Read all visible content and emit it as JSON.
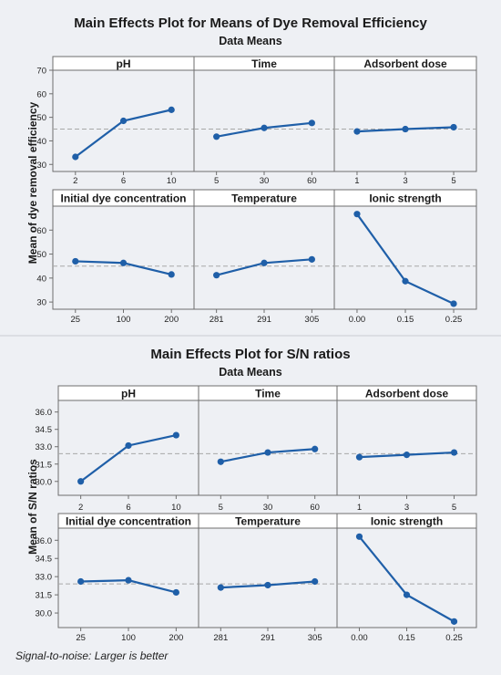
{
  "colors": {
    "background": "#eef0f4",
    "panel_header": "#ffffff",
    "line": "#1f5fa8",
    "reference_line": "#a8a8a8",
    "frame": "#6e6e6e"
  },
  "footnote": "Signal-to-noise: Larger is better",
  "chart_data": [
    {
      "type": "line",
      "title": "Main Effects Plot for Means of Dye Removal Efficiency",
      "subtitle": "Data Means",
      "ylabel": "Mean of dye removal efficiency",
      "grid": false,
      "reference_line": 45,
      "rows": [
        {
          "ylim": [
            27,
            70
          ],
          "yticks": [
            "30",
            "40",
            "50",
            "60",
            "70"
          ]
        },
        {
          "ylim": [
            27,
            70
          ],
          "yticks": [
            "30",
            "40",
            "50",
            "60"
          ]
        }
      ],
      "panels": [
        {
          "title": "pH",
          "categories": [
            "2",
            "6",
            "10"
          ],
          "values": [
            33.2,
            48.5,
            53.2
          ]
        },
        {
          "title": "Time",
          "categories": [
            "5",
            "30",
            "60"
          ],
          "values": [
            41.8,
            45.5,
            47.6
          ]
        },
        {
          "title": "Adsorbent dose",
          "categories": [
            "1",
            "3",
            "5"
          ],
          "values": [
            44.0,
            45.0,
            45.8
          ]
        },
        {
          "title": "Initial dye concentration",
          "categories": [
            "25",
            "100",
            "200"
          ],
          "values": [
            47.0,
            46.3,
            41.5
          ]
        },
        {
          "title": "Temperature",
          "categories": [
            "281",
            "291",
            "305"
          ],
          "values": [
            41.2,
            46.3,
            47.8
          ]
        },
        {
          "title": "Ionic strength",
          "categories": [
            "0.00",
            "0.15",
            "0.25"
          ],
          "values": [
            66.7,
            38.7,
            29.3
          ]
        }
      ]
    },
    {
      "type": "line",
      "title": "Main Effects Plot for S/N ratios",
      "subtitle": "Data Means",
      "ylabel": "Mean of S/N ratios",
      "grid": false,
      "reference_line": 32.4,
      "rows": [
        {
          "ylim": [
            28.8,
            37.0
          ],
          "yticks": [
            "30.0",
            "31.5",
            "33.0",
            "34.5",
            "36.0"
          ]
        },
        {
          "ylim": [
            28.8,
            37.0
          ],
          "yticks": [
            "30.0",
            "31.5",
            "33.0",
            "34.5",
            "36.0"
          ]
        }
      ],
      "panels": [
        {
          "title": "pH",
          "categories": [
            "2",
            "6",
            "10"
          ],
          "values": [
            30.0,
            33.1,
            34.0
          ]
        },
        {
          "title": "Time",
          "categories": [
            "5",
            "30",
            "60"
          ],
          "values": [
            31.7,
            32.5,
            32.8
          ]
        },
        {
          "title": "Adsorbent dose",
          "categories": [
            "1",
            "3",
            "5"
          ],
          "values": [
            32.1,
            32.3,
            32.5
          ]
        },
        {
          "title": "Initial dye concentration",
          "categories": [
            "25",
            "100",
            "200"
          ],
          "values": [
            32.6,
            32.7,
            31.7
          ]
        },
        {
          "title": "Temperature",
          "categories": [
            "281",
            "291",
            "305"
          ],
          "values": [
            32.1,
            32.3,
            32.6
          ]
        },
        {
          "title": "Ionic strength",
          "categories": [
            "0.00",
            "0.15",
            "0.25"
          ],
          "values": [
            36.3,
            31.5,
            29.3
          ]
        }
      ]
    }
  ]
}
